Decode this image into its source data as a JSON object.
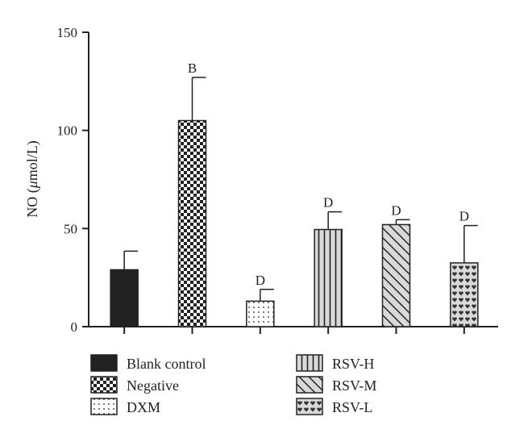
{
  "chart_data": {
    "type": "bar",
    "ylabel_pre": "NO (",
    "ylabel_mu": "μ",
    "ylabel_post": "mol/L)",
    "xlabel": "",
    "ylim": [
      0,
      150
    ],
    "yticks": [
      0,
      50,
      100,
      150
    ],
    "grid": false,
    "legend": "bottom",
    "categories": [
      "Blank control",
      "Negative",
      "DXM",
      "RSV-H",
      "RSV-M",
      "RSV-L"
    ],
    "values": [
      29,
      105,
      13,
      49.5,
      52,
      32.5
    ],
    "errors": [
      9.5,
      22,
      6,
      9,
      2.5,
      19
    ],
    "annotations": [
      "",
      "B",
      "D",
      "D",
      "D",
      "D"
    ],
    "patterns": [
      "solid",
      "checker",
      "dots",
      "vlines",
      "diag",
      "hearts"
    ]
  },
  "colors": {
    "axis": "#222222",
    "solid": "#222222",
    "light_fill": "#d9d9d9"
  }
}
